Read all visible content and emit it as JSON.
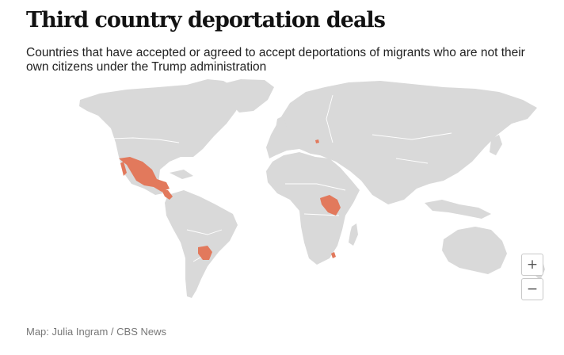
{
  "header": {
    "title": "Third country deportation deals",
    "subtitle": "Countries that have accepted or agreed to accept deportations of migrants who are not their own citizens under the Trump administration"
  },
  "map": {
    "land_color": "#d9d9d9",
    "highlight_color": "#e2795c",
    "highlighted_regions": [
      "Mexico",
      "Central America",
      "Paraguay",
      "Uganda / South Sudan region",
      "Eswatini",
      "Kosovo"
    ]
  },
  "controls": {
    "zoom_in_label": "+",
    "zoom_out_label": "−"
  },
  "footer": {
    "credit": "Map: Julia Ingram / CBS News"
  }
}
